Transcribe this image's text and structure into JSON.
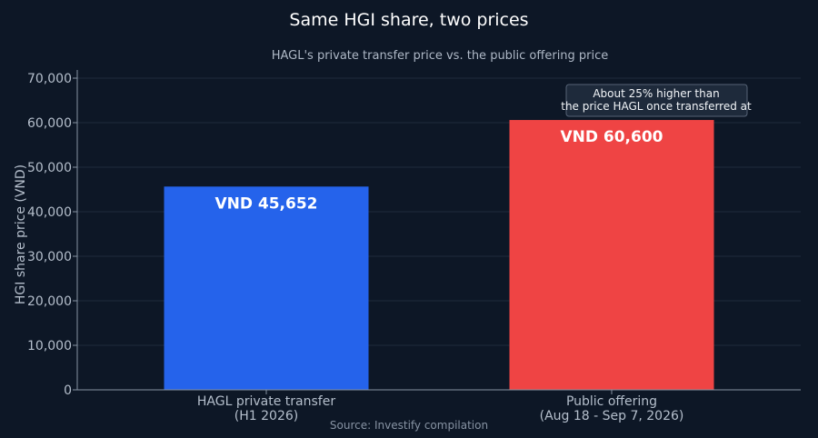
{
  "chart_data": {
    "type": "bar",
    "title": "Same HGI share, two prices",
    "subtitle": "HAGL's private transfer price vs. the public offering price",
    "ylabel": "HGI share price (VND)",
    "xlabel": "",
    "ylim": [
      0,
      70000
    ],
    "yticks": [
      0,
      10000,
      20000,
      30000,
      40000,
      50000,
      60000,
      70000
    ],
    "ytick_labels": [
      "0",
      "10,000",
      "20,000",
      "30,000",
      "40,000",
      "50,000",
      "60,000",
      "70,000"
    ],
    "grid": true,
    "categories": [
      {
        "line1": "HAGL private transfer",
        "line2": "(H1 2026)"
      },
      {
        "line1": "Public offering",
        "line2": "(Aug 18 - Sep 7, 2026)"
      }
    ],
    "values": [
      45652,
      60600
    ],
    "data_labels": [
      "VND 45,652",
      "VND 60,600"
    ],
    "colors": [
      "#2563eb",
      "#ef4444"
    ],
    "annotation": {
      "line1": "About 25% higher than",
      "line2": "the price HAGL once transferred at"
    },
    "source": "Source: Investify compilation"
  }
}
